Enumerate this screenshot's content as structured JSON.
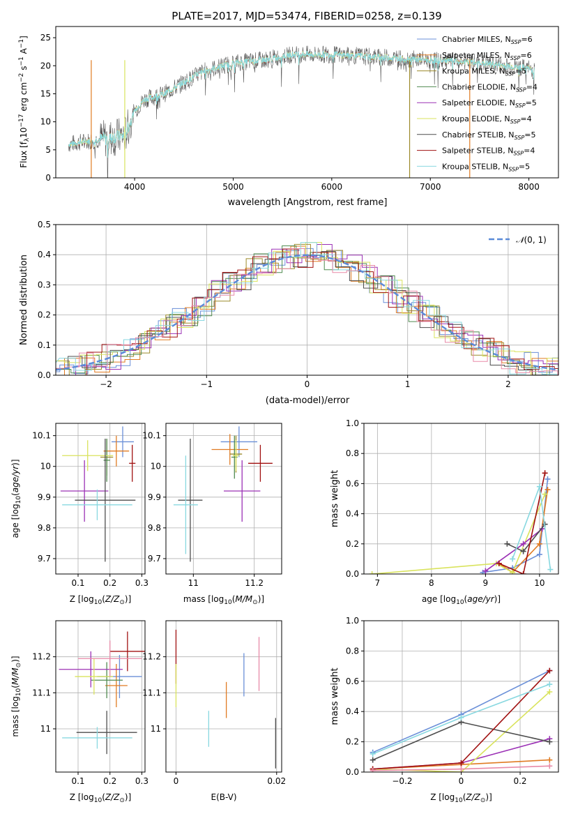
{
  "figure_title": "PLATE=2017, MJD=53474, FIBERID=0258, z=0.139",
  "colors": {
    "Chabrier MILES": "#6a8fd8",
    "Salpeter MILES": "#e07b22",
    "Kroupa MILES": "#9c8a2a",
    "Chabrier ELODIE": "#4f8a4f",
    "Salpeter ELODIE": "#9b30b5",
    "Kroupa ELODIE": "#d9e35c",
    "Chabrier STELIB": "#4d4d4d",
    "Salpeter STELIB": "#a01010",
    "Kroupa STELIB": "#88d8e0",
    "extra_pink": "#e88aa8",
    "gaussian": "#5b8bd8"
  },
  "chart_data": [
    {
      "id": "spectrum",
      "type": "line",
      "title": "PLATE=2017, MJD=53474, FIBERID=0258, z=0.139",
      "xlabel": "wavelength [Angstrom, rest frame]",
      "ylabel": "Flux [f_λ 10^-17 erg cm^-2 s^-1 A^-1]",
      "xlim": [
        3200,
        8300
      ],
      "ylim": [
        0,
        27
      ],
      "xticks": [
        4000,
        5000,
        6000,
        7000,
        8000
      ],
      "yticks": [
        0,
        5,
        10,
        15,
        20,
        25
      ],
      "grid": false,
      "legend_position": "top-right",
      "legend": [
        "Chabrier MILES, N_SSP=6",
        "Salpeter MILES, N_SSP=6",
        "Kroupa MILES, N_SSP=5",
        "Chabrier ELODIE, N_SSP=4",
        "Salpeter ELODIE, N_SSP=5",
        "Kroupa ELODIE, N_SSP=4",
        "Chabrier STELIB, N_SSP=5",
        "Salpeter STELIB, N_SSP=4",
        "Kroupa STELIB, N_SSP=5"
      ],
      "continuum": {
        "x": [
          3330,
          3500,
          3700,
          3900,
          4000,
          4100,
          4300,
          4500,
          4700,
          5000,
          5300,
          5600,
          6000,
          6500,
          7000,
          7500,
          8000,
          8060
        ],
        "y": [
          6,
          6.5,
          7,
          7.5,
          12,
          14,
          15,
          17,
          19,
          20.5,
          21,
          22,
          22,
          21.5,
          21,
          20.5,
          19.5,
          19
        ]
      }
    },
    {
      "id": "residuals",
      "type": "histogram",
      "xlabel": "(data-model)/error",
      "ylabel": "Normed distribution",
      "xlim": [
        -2.5,
        2.5
      ],
      "ylim": [
        0,
        0.5
      ],
      "xticks": [
        -2,
        -1,
        0,
        1,
        2
      ],
      "yticks": [
        0.0,
        0.1,
        0.2,
        0.3,
        0.4,
        0.5
      ],
      "grid": true,
      "legend_position": "top-right",
      "gaussian_label": "N(0,1)"
    },
    {
      "id": "age_vs_Z",
      "type": "scatter",
      "xlabel": "Z [log10(Z/Z⊙)]",
      "ylabel": "age [log10(age/yr)]",
      "xlim": [
        0.03,
        0.31
      ],
      "ylim": [
        9.65,
        10.14
      ],
      "xticks": [
        0.1,
        0.2,
        0.3
      ],
      "yticks": [
        9.7,
        9.8,
        9.9,
        10.0,
        10.1
      ],
      "grid": true,
      "points": [
        {
          "model": "Chabrier MILES",
          "x": 0.24,
          "y": 10.08,
          "xerr": 0.035,
          "yerr": 0.05
        },
        {
          "model": "Salpeter MILES",
          "x": 0.22,
          "y": 10.05,
          "xerr": 0.04,
          "yerr": 0.05
        },
        {
          "model": "Kroupa MILES",
          "x": 0.19,
          "y": 10.03,
          "xerr": 0.02,
          "yerr": 0.06
        },
        {
          "model": "Chabrier ELODIE",
          "x": 0.19,
          "y": 10.02,
          "xerr": 0.01,
          "yerr": 0.07
        },
        {
          "model": "Salpeter ELODIE",
          "x": 0.12,
          "y": 9.92,
          "xerr": 0.075,
          "yerr": 0.1
        },
        {
          "model": "Kroupa ELODIE",
          "x": 0.13,
          "y": 10.035,
          "xerr": 0.08,
          "yerr": 0.05
        },
        {
          "model": "Chabrier STELIB",
          "x": 0.185,
          "y": 9.89,
          "xerr": 0.095,
          "yerr": 0.2
        },
        {
          "model": "Salpeter STELIB",
          "x": 0.27,
          "y": 10.01,
          "xerr": 0.01,
          "yerr": 0.06
        },
        {
          "model": "Kroupa STELIB",
          "x": 0.16,
          "y": 9.875,
          "xerr": 0.11,
          "yerr": 0.05
        }
      ]
    },
    {
      "id": "age_vs_mass",
      "type": "scatter",
      "xlabel": "mass [log10(M/M⊙)]",
      "ylabel": "",
      "xlim": [
        10.91,
        11.29
      ],
      "ylim": [
        9.65,
        10.14
      ],
      "xticks": [
        11.0,
        11.2
      ],
      "yticks": [
        9.7,
        9.8,
        9.9,
        10.0,
        10.1
      ],
      "grid": true,
      "points": [
        {
          "model": "Chabrier MILES",
          "x": 11.15,
          "y": 10.08,
          "xerr": 0.06,
          "yerr": 0.05
        },
        {
          "model": "Salpeter MILES",
          "x": 11.12,
          "y": 10.055,
          "xerr": 0.06,
          "yerr": 0.05
        },
        {
          "model": "Kroupa MILES",
          "x": 11.14,
          "y": 10.04,
          "xerr": 0.02,
          "yerr": 0.06
        },
        {
          "model": "Chabrier ELODIE",
          "x": 11.135,
          "y": 10.03,
          "xerr": 0.01,
          "yerr": 0.07
        },
        {
          "model": "Salpeter ELODIE",
          "x": 11.16,
          "y": 9.92,
          "xerr": 0.06,
          "yerr": 0.1
        },
        {
          "model": "Kroupa ELODIE",
          "x": 11.14,
          "y": 10.035,
          "xerr": 0.01,
          "yerr": 0.05
        },
        {
          "model": "Chabrier STELIB",
          "x": 10.99,
          "y": 9.89,
          "xerr": 0.04,
          "yerr": 0.2
        },
        {
          "model": "Salpeter STELIB",
          "x": 11.22,
          "y": 10.01,
          "xerr": 0.04,
          "yerr": 0.06
        },
        {
          "model": "Kroupa STELIB",
          "x": 10.975,
          "y": 9.875,
          "xerr": 0.04,
          "yerr": 0.16
        }
      ]
    },
    {
      "id": "weight_vs_age",
      "type": "line",
      "xlabel": "age [log10(age/yr)]",
      "ylabel": "mass weight",
      "xlim": [
        6.75,
        10.35
      ],
      "ylim": [
        0.0,
        1.0
      ],
      "xticks": [
        7,
        8,
        9,
        10
      ],
      "yticks": [
        0.0,
        0.2,
        0.4,
        0.6,
        0.8,
        1.0
      ],
      "grid": true,
      "series": [
        {
          "model": "Chabrier MILES",
          "x": [
            8.95,
            9.5,
            10.0,
            10.15
          ],
          "y": [
            0.01,
            0.04,
            0.13,
            0.63
          ]
        },
        {
          "model": "Salpeter MILES",
          "x": [
            9.25,
            9.5,
            10.0,
            10.15
          ],
          "y": [
            0.07,
            0.01,
            0.2,
            0.56
          ]
        },
        {
          "model": "Kroupa ELODIE",
          "x": [
            6.9,
            9.2,
            9.5,
            10.1
          ],
          "y": [
            0.0,
            0.07,
            0.01,
            0.53
          ]
        },
        {
          "model": "Salpeter ELODIE",
          "x": [
            9.0,
            9.7,
            10.05
          ],
          "y": [
            0.02,
            0.2,
            0.3
          ]
        },
        {
          "model": "Chabrier STELIB",
          "x": [
            9.4,
            9.7,
            10.1
          ],
          "y": [
            0.2,
            0.15,
            0.33
          ]
        },
        {
          "model": "Salpeter STELIB",
          "x": [
            9.25,
            9.7,
            10.1
          ],
          "y": [
            0.07,
            0.0,
            0.67
          ]
        },
        {
          "model": "Kroupa STELIB",
          "x": [
            9.5,
            10.0,
            10.2
          ],
          "y": [
            0.1,
            0.58,
            0.03
          ]
        }
      ]
    },
    {
      "id": "mass_vs_Z",
      "type": "scatter",
      "xlabel": "Z [log10(Z/Z⊙)]",
      "ylabel": "mass [log10(M/M⊙)]",
      "xlim": [
        0.03,
        0.31
      ],
      "ylim": [
        10.88,
        11.3
      ],
      "xticks": [
        0.1,
        0.2,
        0.3
      ],
      "yticks": [
        11.0,
        11.1,
        11.2
      ],
      "grid": true,
      "points": [
        {
          "model": "Chabrier MILES",
          "x": 0.23,
          "y": 11.145,
          "xerr": 0.07,
          "yerr": 0.06
        },
        {
          "model": "Salpeter MILES",
          "x": 0.22,
          "y": 11.12,
          "xerr": 0.035,
          "yerr": 0.06
        },
        {
          "model": "Chabrier ELODIE",
          "x": 0.19,
          "y": 11.135,
          "xerr": 0.05,
          "yerr": 0.05
        },
        {
          "model": "Salpeter ELODIE",
          "x": 0.14,
          "y": 11.165,
          "xerr": 0.1,
          "yerr": 0.05
        },
        {
          "model": "Kroupa ELODIE",
          "x": 0.15,
          "y": 11.145,
          "xerr": 0.06,
          "yerr": 0.05
        },
        {
          "model": "Chabrier STELIB",
          "x": 0.19,
          "y": 10.99,
          "xerr": 0.095,
          "yerr": 0.06
        },
        {
          "model": "Salpeter STELIB",
          "x": 0.255,
          "y": 11.215,
          "xerr": 0.055,
          "yerr": 0.055
        },
        {
          "model": "Kroupa STELIB",
          "x": 0.16,
          "y": 10.975,
          "xerr": 0.11,
          "yerr": 0.03
        },
        {
          "model": "extra_pink",
          "x": 0.2,
          "y": 11.195,
          "xerr": 0.1,
          "yerr": 0.05
        }
      ]
    },
    {
      "id": "mass_vs_EBV",
      "type": "scatter",
      "xlabel": "E(B-V)",
      "ylabel": "",
      "xlim": [
        -0.002,
        0.021
      ],
      "ylim": [
        10.88,
        11.3
      ],
      "xticks": [
        0.0,
        0.02
      ],
      "yticks": [
        11.0,
        11.1,
        11.2
      ],
      "grid": true,
      "points": [
        {
          "model": "Salpeter STELIB",
          "x": 0.0,
          "y": 11.2,
          "yerr": 0.075
        },
        {
          "model": "Kroupa ELODIE",
          "x": 0.0,
          "y": 11.12,
          "yerr": 0.06
        },
        {
          "model": "Kroupa STELIB",
          "x": 0.0065,
          "y": 11.0,
          "yerr": 0.05
        },
        {
          "model": "Salpeter MILES",
          "x": 0.01,
          "y": 11.08,
          "yerr": 0.05
        },
        {
          "model": "Chabrier MILES",
          "x": 0.0135,
          "y": 11.15,
          "yerr": 0.06
        },
        {
          "model": "extra_pink",
          "x": 0.0165,
          "y": 11.18,
          "yerr": 0.075
        },
        {
          "model": "Chabrier STELIB",
          "x": 0.0198,
          "y": 10.96,
          "yerr": 0.07
        }
      ]
    },
    {
      "id": "weight_vs_Z",
      "type": "line",
      "xlabel": "Z [log10(Z/Z⊙)]",
      "ylabel": "mass weight",
      "xlim": [
        -0.33,
        0.33
      ],
      "ylim": [
        0.0,
        1.0
      ],
      "xticks": [
        -0.2,
        0.0,
        0.2
      ],
      "yticks": [
        0.0,
        0.2,
        0.4,
        0.6,
        0.8,
        1.0
      ],
      "grid": true,
      "series": [
        {
          "model": "Chabrier MILES",
          "x": [
            -0.3,
            0.0,
            0.3
          ],
          "y": [
            0.13,
            0.38,
            0.67
          ]
        },
        {
          "model": "Salpeter MILES",
          "x": [
            -0.3,
            0.0,
            0.3
          ],
          "y": [
            0.02,
            0.05,
            0.08
          ]
        },
        {
          "model": "Salpeter ELODIE",
          "x": [
            -0.3,
            0.0,
            0.3
          ],
          "y": [
            0.02,
            0.06,
            0.22
          ]
        },
        {
          "model": "Kroupa ELODIE",
          "x": [
            -0.3,
            0.0,
            0.3
          ],
          "y": [
            0.02,
            0.0,
            0.53
          ]
        },
        {
          "model": "Chabrier STELIB",
          "x": [
            -0.3,
            0.0,
            0.3
          ],
          "y": [
            0.08,
            0.33,
            0.2
          ]
        },
        {
          "model": "Salpeter STELIB",
          "x": [
            -0.3,
            0.0,
            0.3
          ],
          "y": [
            0.02,
            0.06,
            0.67
          ]
        },
        {
          "model": "Kroupa STELIB",
          "x": [
            -0.3,
            0.0,
            0.3
          ],
          "y": [
            0.12,
            0.36,
            0.58
          ]
        },
        {
          "model": "extra_pink",
          "x": [
            -0.3,
            0.0,
            0.3
          ],
          "y": [
            0.01,
            0.02,
            0.04
          ]
        }
      ]
    }
  ]
}
